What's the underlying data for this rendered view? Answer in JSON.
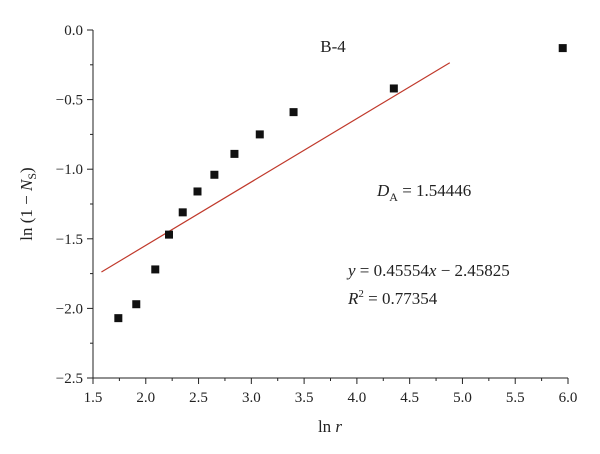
{
  "chart_data": {
    "type": "scatter",
    "title": "",
    "xlabel": {
      "main": "ln",
      "var": "r"
    },
    "ylabel": {
      "main": "ln (1 − ",
      "var": "N",
      "sub": "S",
      "tail": ")"
    },
    "xlim": [
      1.5,
      6.0
    ],
    "ylim": [
      -2.5,
      0.0
    ],
    "x_ticks": [
      1.5,
      2.0,
      2.5,
      3.0,
      3.5,
      4.0,
      4.5,
      5.0,
      5.5,
      6.0
    ],
    "x_tick_labels": [
      "1.5",
      "2.0",
      "2.5",
      "3.0",
      "3.5",
      "4.0",
      "4.5",
      "5.0",
      "5.5",
      "6.0"
    ],
    "y_ticks": [
      0.0,
      -0.5,
      -1.0,
      -1.5,
      -2.0,
      -2.5
    ],
    "y_tick_labels": [
      "0.0",
      "−0.5",
      "−1.0",
      "−1.5",
      "−2.0",
      "−2.5"
    ],
    "grid": false,
    "series": [
      {
        "marker": "square",
        "color": "#111111",
        "x": [
          1.74,
          1.91,
          2.09,
          2.22,
          2.35,
          2.49,
          2.65,
          2.84,
          3.08,
          3.4,
          4.35,
          5.95
        ],
        "y": [
          -2.07,
          -1.97,
          -1.72,
          -1.47,
          -1.31,
          -1.16,
          -1.04,
          -0.89,
          -0.75,
          -0.59,
          -0.42,
          -0.13
        ]
      }
    ],
    "fit_line": {
      "color": "#c0392b",
      "slope": 0.45554,
      "intercept": -2.45825,
      "x_range": [
        1.58,
        4.88
      ]
    },
    "annotations": {
      "sample": "B-4",
      "da": {
        "main": "D",
        "sub": "A",
        "rest": " = 1.54446"
      },
      "equation": {
        "var_y": "y",
        "mid": " = 0.45554",
        "var_x": "x",
        "rest": " − 2.45825"
      },
      "r2": {
        "var": "R",
        "sup": "2",
        "rest": " = 0.77354"
      }
    }
  }
}
